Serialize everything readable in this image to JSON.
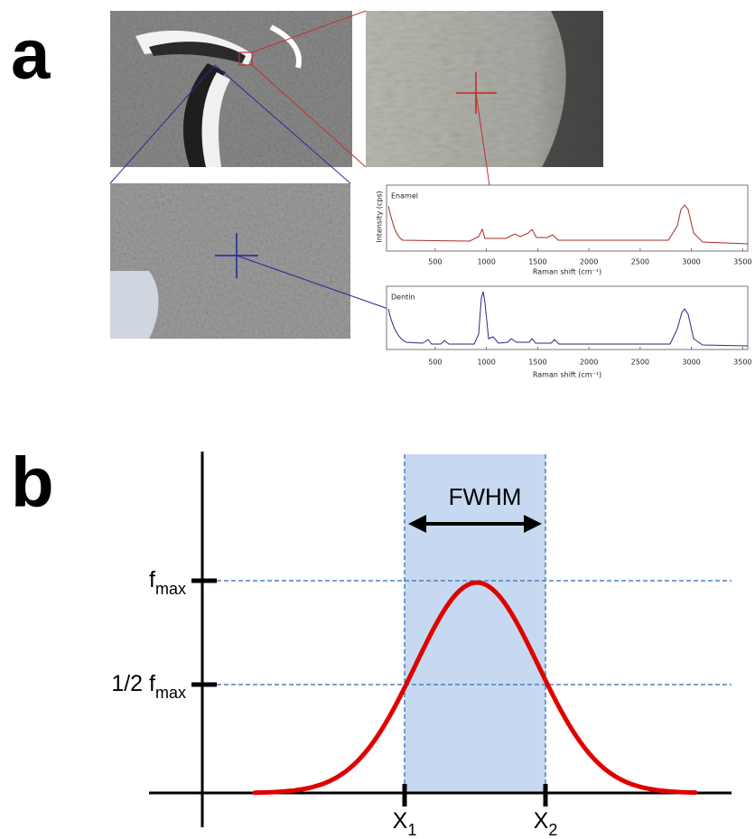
{
  "panels": {
    "a": {
      "label": "a",
      "spectra": [
        {
          "name": "Enamel",
          "y_label": "Intensity (cps)",
          "x_label": "Raman shift (cm⁻¹)",
          "xlim": [
            25,
            3550
          ],
          "xticks": [
            500,
            1000,
            1500,
            2000,
            2500,
            3000,
            3500
          ]
        },
        {
          "name": "Dentin",
          "x_label": "Raman shift (cm⁻¹)",
          "xlim": [
            25,
            3550
          ],
          "xticks": [
            500,
            1000,
            1500,
            2000,
            2500,
            3000,
            3500
          ]
        }
      ]
    },
    "b": {
      "label": "b",
      "width_label": "FWHM",
      "levels": [
        {
          "base": "f",
          "sub": "max"
        },
        {
          "prefix": "1/2 ",
          "base": "f",
          "sub": "max"
        }
      ],
      "x_points": [
        {
          "base": "X",
          "sub": "1"
        },
        {
          "base": "X",
          "sub": "2"
        }
      ]
    }
  }
}
